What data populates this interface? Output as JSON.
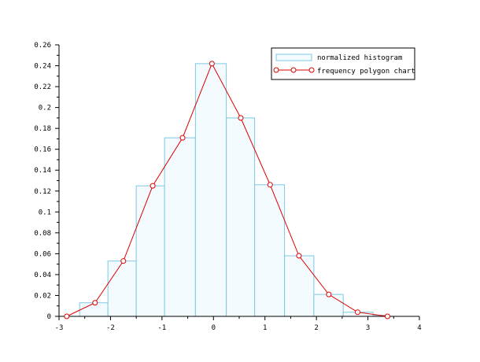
{
  "chart_data": {
    "type": "bar",
    "title": "",
    "xlabel": "",
    "ylabel": "",
    "xlim": [
      -3,
      4
    ],
    "ylim": [
      0,
      0.26
    ],
    "x_ticks": [
      -3,
      -2,
      -1,
      0,
      1,
      2,
      3,
      4
    ],
    "y_ticks": [
      0,
      0.02,
      0.04,
      0.06,
      0.08,
      0.1,
      0.12,
      0.14,
      0.16,
      0.18,
      0.2,
      0.22,
      0.24,
      0.26
    ],
    "x_tick_labels": [
      "-3",
      "-2",
      "-1",
      "0",
      "1",
      "2",
      "3",
      "4"
    ],
    "y_tick_labels": [
      "0",
      "0.02",
      "0.04",
      "0.06",
      "0.08",
      "0.1",
      "0.12",
      "0.14",
      "0.16",
      "0.18",
      "0.2",
      "0.22",
      "0.24",
      "0.26"
    ],
    "legend_position": "top-right",
    "grid": false,
    "series": [
      {
        "name": "normalized histogram",
        "type": "histogram",
        "color": "#7ec8e3",
        "fill": "#f4fbfe",
        "bins": [
          {
            "x0": -3.0,
            "x1": -2.6,
            "value": 0.0
          },
          {
            "x0": -2.6,
            "x1": -2.05,
            "value": 0.013
          },
          {
            "x0": -2.05,
            "x1": -1.5,
            "value": 0.053
          },
          {
            "x0": -1.5,
            "x1": -0.95,
            "value": 0.125
          },
          {
            "x0": -0.95,
            "x1": -0.35,
            "value": 0.171
          },
          {
            "x0": -0.35,
            "x1": 0.25,
            "value": 0.242
          },
          {
            "x0": 0.25,
            "x1": 0.8,
            "value": 0.19
          },
          {
            "x0": 0.8,
            "x1": 1.38,
            "value": 0.126
          },
          {
            "x0": 1.38,
            "x1": 1.95,
            "value": 0.058
          },
          {
            "x0": 1.95,
            "x1": 2.52,
            "value": 0.021
          },
          {
            "x0": 2.52,
            "x1": 3.1,
            "value": 0.004
          },
          {
            "x0": 3.1,
            "x1": 3.4,
            "value": 0.001
          }
        ]
      },
      {
        "name": "frequency polygon chart",
        "type": "line",
        "color": "#dd0000",
        "x": [
          -2.85,
          -2.3,
          -1.75,
          -1.18,
          -0.6,
          -0.03,
          0.53,
          1.1,
          1.66,
          2.24,
          2.8,
          3.38
        ],
        "y": [
          0.0,
          0.013,
          0.053,
          0.125,
          0.171,
          0.242,
          0.19,
          0.126,
          0.058,
          0.021,
          0.004,
          0.0
        ]
      }
    ]
  }
}
